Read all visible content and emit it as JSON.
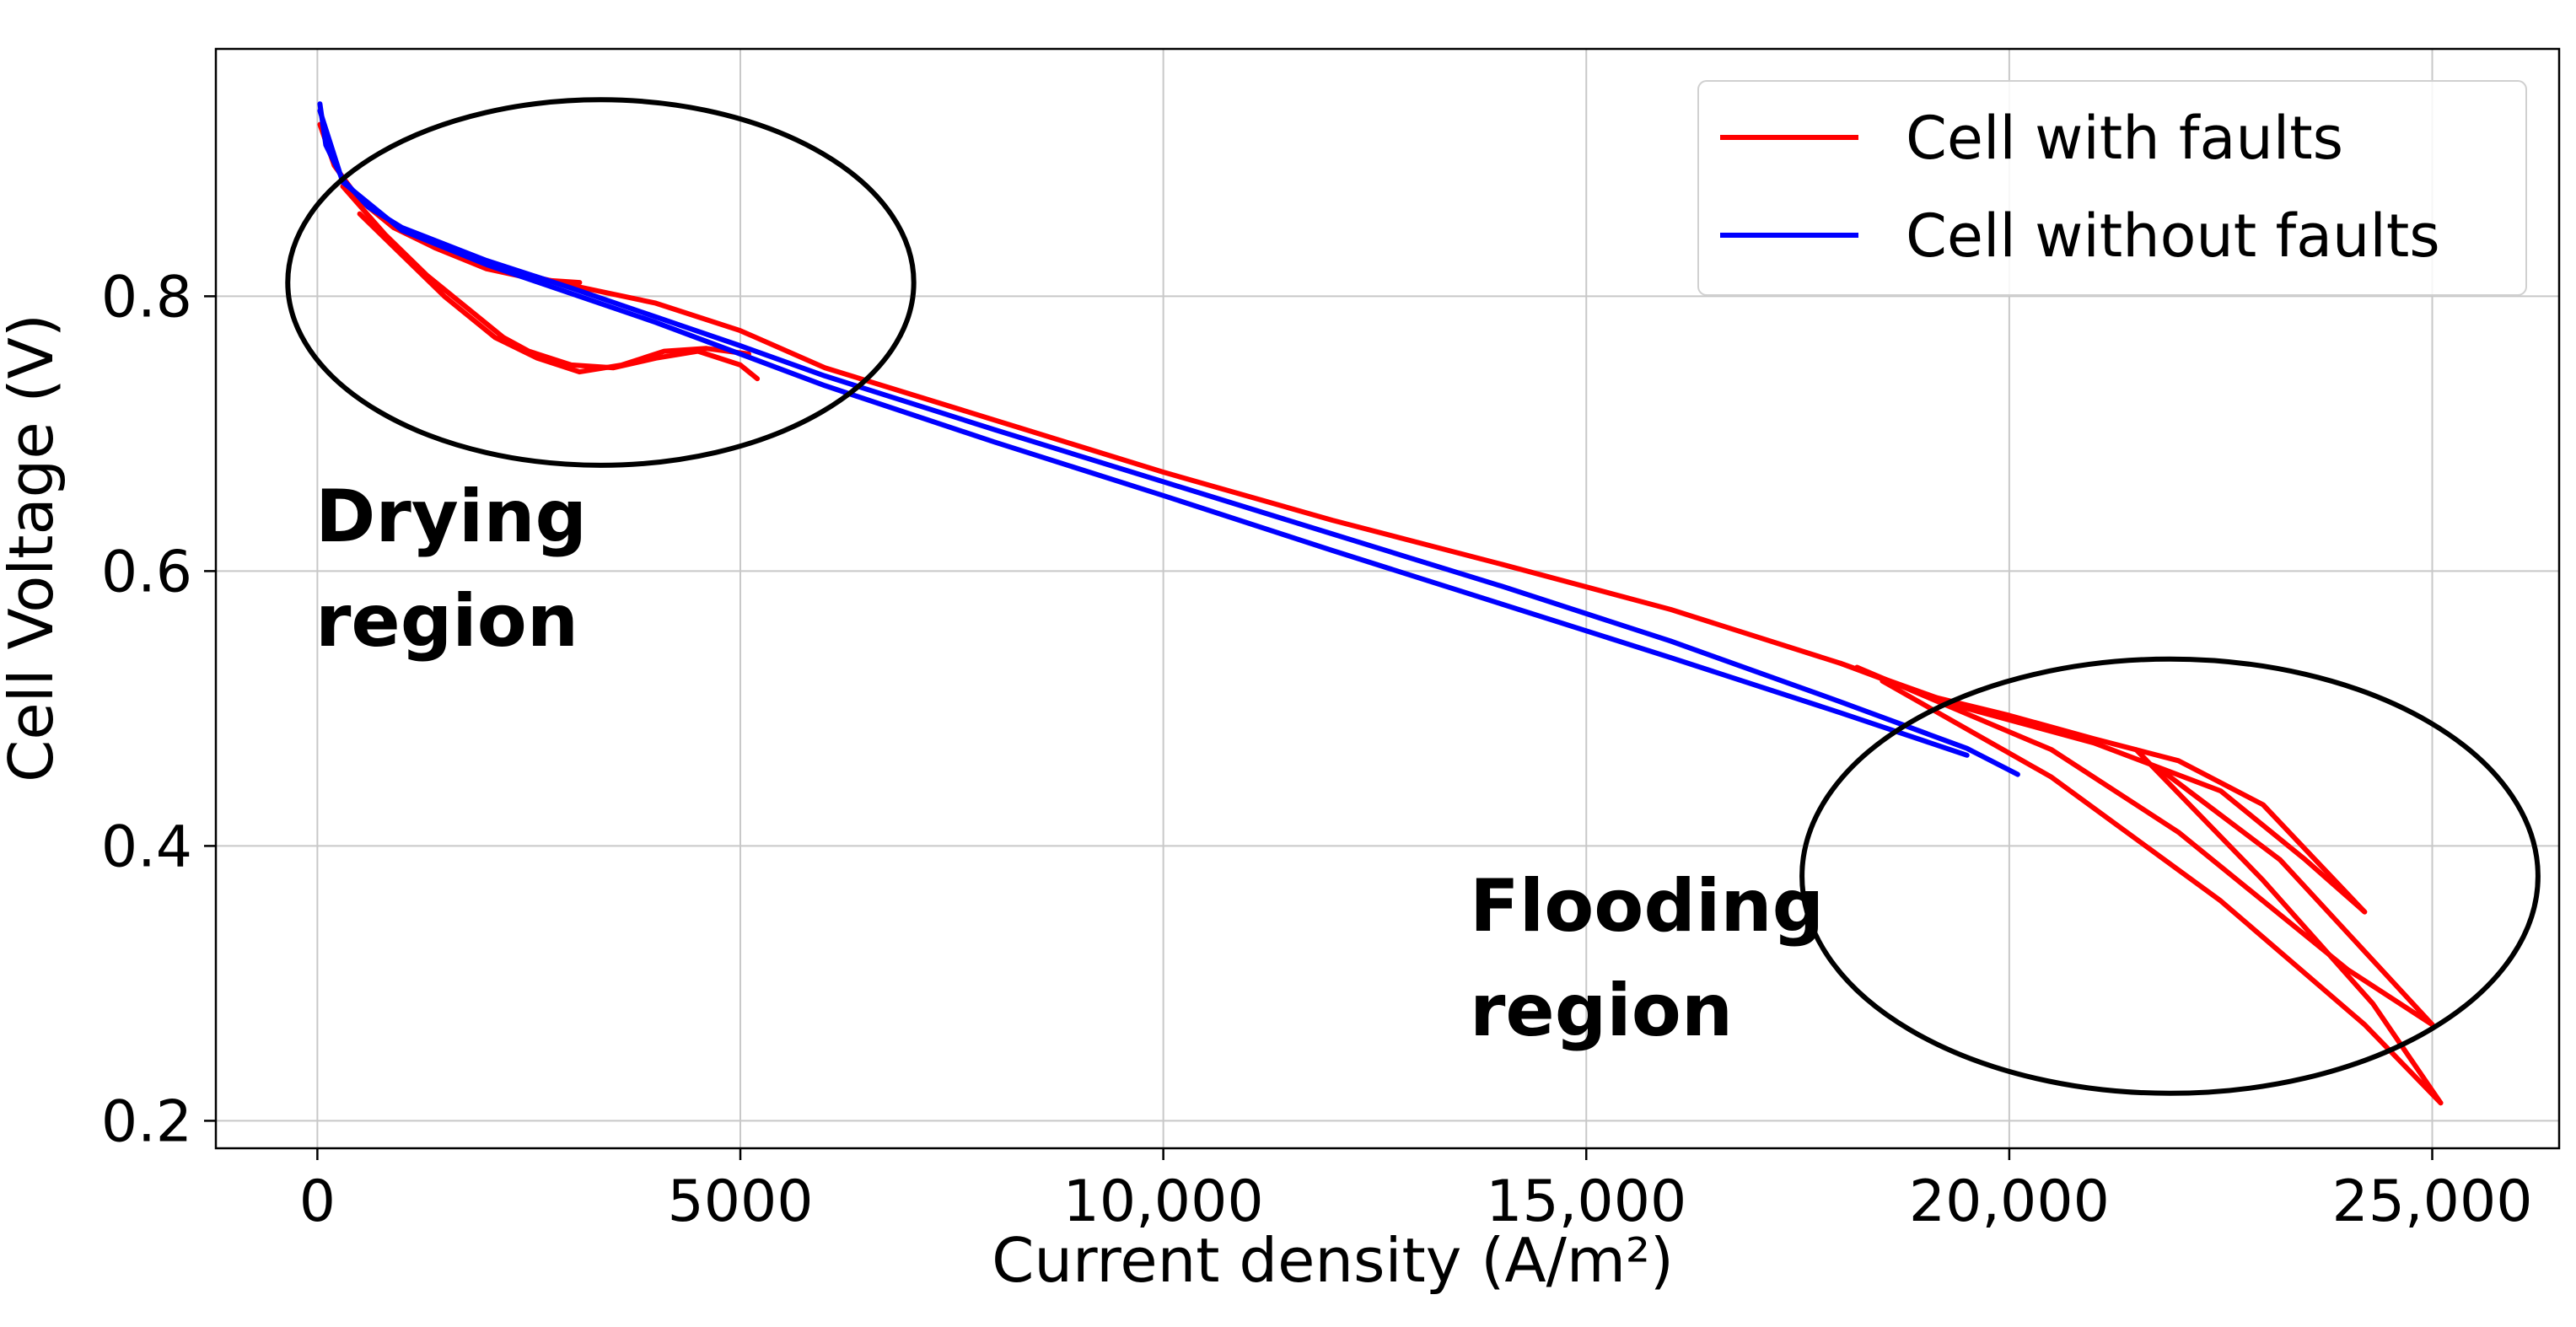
{
  "chart_data": {
    "type": "line",
    "title": "",
    "xlabel": "Current density (A/m²)",
    "ylabel": "Cell Voltage (V)",
    "xlim": [
      -1200,
      26500
    ],
    "ylim": [
      0.18,
      0.98
    ],
    "grid": true,
    "legend_position": "top-right",
    "x_ticks": [
      {
        "value": 0,
        "label": "0"
      },
      {
        "value": 5000,
        "label": "5000"
      },
      {
        "value": 10000,
        "label": "10,000"
      },
      {
        "value": 15000,
        "label": "15,000"
      },
      {
        "value": 20000,
        "label": "20,000"
      },
      {
        "value": 25000,
        "label": "25,000"
      }
    ],
    "y_ticks": [
      {
        "value": 0.2,
        "label": "0.2"
      },
      {
        "value": 0.4,
        "label": "0.4"
      },
      {
        "value": 0.6,
        "label": "0.6"
      },
      {
        "value": 0.8,
        "label": "0.8"
      }
    ],
    "series": [
      {
        "name": "Cell with faults",
        "color": "#ff0000",
        "segments": [
          [
            [
              30,
              0.925
            ],
            [
              200,
              0.895
            ],
            [
              500,
              0.87
            ],
            [
              900,
              0.85
            ],
            [
              1400,
              0.835
            ],
            [
              2000,
              0.82
            ],
            [
              2600,
              0.812
            ],
            [
              3100,
              0.81
            ]
          ],
          [
            [
              300,
              0.88
            ],
            [
              800,
              0.845
            ],
            [
              1300,
              0.815
            ],
            [
              1800,
              0.79
            ],
            [
              2200,
              0.77
            ],
            [
              2500,
              0.76
            ],
            [
              3000,
              0.75
            ],
            [
              3500,
              0.748
            ],
            [
              4000,
              0.755
            ],
            [
              4500,
              0.76
            ],
            [
              5000,
              0.75
            ],
            [
              5200,
              0.74
            ]
          ],
          [
            [
              500,
              0.86
            ],
            [
              1000,
              0.83
            ],
            [
              1500,
              0.8
            ],
            [
              2100,
              0.77
            ],
            [
              2600,
              0.755
            ],
            [
              3100,
              0.745
            ],
            [
              3600,
              0.75
            ],
            [
              4100,
              0.76
            ],
            [
              4600,
              0.762
            ],
            [
              5100,
              0.758
            ]
          ],
          [
            [
              2000,
              0.822
            ],
            [
              3000,
              0.808
            ],
            [
              4000,
              0.795
            ],
            [
              5000,
              0.775
            ],
            [
              6000,
              0.748
            ],
            [
              8000,
              0.71
            ],
            [
              10000,
              0.672
            ],
            [
              12000,
              0.637
            ],
            [
              14000,
              0.605
            ],
            [
              16000,
              0.572
            ],
            [
              18000,
              0.533
            ],
            [
              19000,
              0.51
            ],
            [
              20000,
              0.495
            ],
            [
              21000,
              0.478
            ],
            [
              22000,
              0.462
            ],
            [
              23000,
              0.43
            ],
            [
              24200,
              0.352
            ]
          ],
          [
            [
              18000,
              0.533
            ],
            [
              19500,
              0.5
            ],
            [
              21000,
              0.475
            ],
            [
              22500,
              0.44
            ],
            [
              23500,
              0.39
            ],
            [
              24200,
              0.352
            ]
          ],
          [
            [
              18200,
              0.53
            ],
            [
              20500,
              0.47
            ],
            [
              22000,
              0.41
            ],
            [
              24000,
              0.31
            ],
            [
              25000,
              0.27
            ]
          ],
          [
            [
              18500,
              0.52
            ],
            [
              20500,
              0.45
            ],
            [
              22500,
              0.36
            ],
            [
              24200,
              0.27
            ],
            [
              25100,
              0.213
            ]
          ],
          [
            [
              21500,
              0.47
            ],
            [
              23000,
              0.375
            ],
            [
              24300,
              0.285
            ],
            [
              25100,
              0.213
            ]
          ],
          [
            [
              25000,
              0.27
            ],
            [
              23200,
              0.39
            ],
            [
              21800,
              0.455
            ]
          ]
        ]
      },
      {
        "name": "Cell without faults",
        "color": "#0000ff",
        "segments": [
          [
            [
              30,
              0.94
            ],
            [
              100,
              0.91
            ],
            [
              300,
              0.885
            ],
            [
              600,
              0.865
            ],
            [
              1000,
              0.85
            ],
            [
              2000,
              0.826
            ],
            [
              3000,
              0.806
            ],
            [
              4000,
              0.785
            ],
            [
              5000,
              0.764
            ],
            [
              6000,
              0.742
            ],
            [
              8000,
              0.703
            ],
            [
              10000,
              0.665
            ],
            [
              12000,
              0.627
            ],
            [
              14000,
              0.589
            ],
            [
              16000,
              0.549
            ],
            [
              18000,
              0.505
            ],
            [
              19500,
              0.471
            ],
            [
              20100,
              0.452
            ]
          ],
          [
            [
              30,
              0.935
            ],
            [
              300,
              0.883
            ],
            [
              1000,
              0.848
            ],
            [
              2000,
              0.823
            ],
            [
              4000,
              0.781
            ],
            [
              6000,
              0.735
            ],
            [
              8000,
              0.694
            ],
            [
              10000,
              0.655
            ],
            [
              12000,
              0.615
            ],
            [
              14000,
              0.576
            ],
            [
              16000,
              0.537
            ],
            [
              18000,
              0.497
            ],
            [
              19500,
              0.466
            ]
          ]
        ]
      }
    ],
    "annotations": [
      {
        "text_lines": [
          "Drying",
          "region"
        ],
        "ellipse_center": [
          3350,
          0.81
        ],
        "ellipse_radius": [
          3700,
          0.133
        ]
      },
      {
        "text_lines": [
          "Flooding",
          "region"
        ],
        "ellipse_center": [
          21900,
          0.378
        ],
        "ellipse_radius": [
          4350,
          0.158
        ]
      }
    ]
  }
}
